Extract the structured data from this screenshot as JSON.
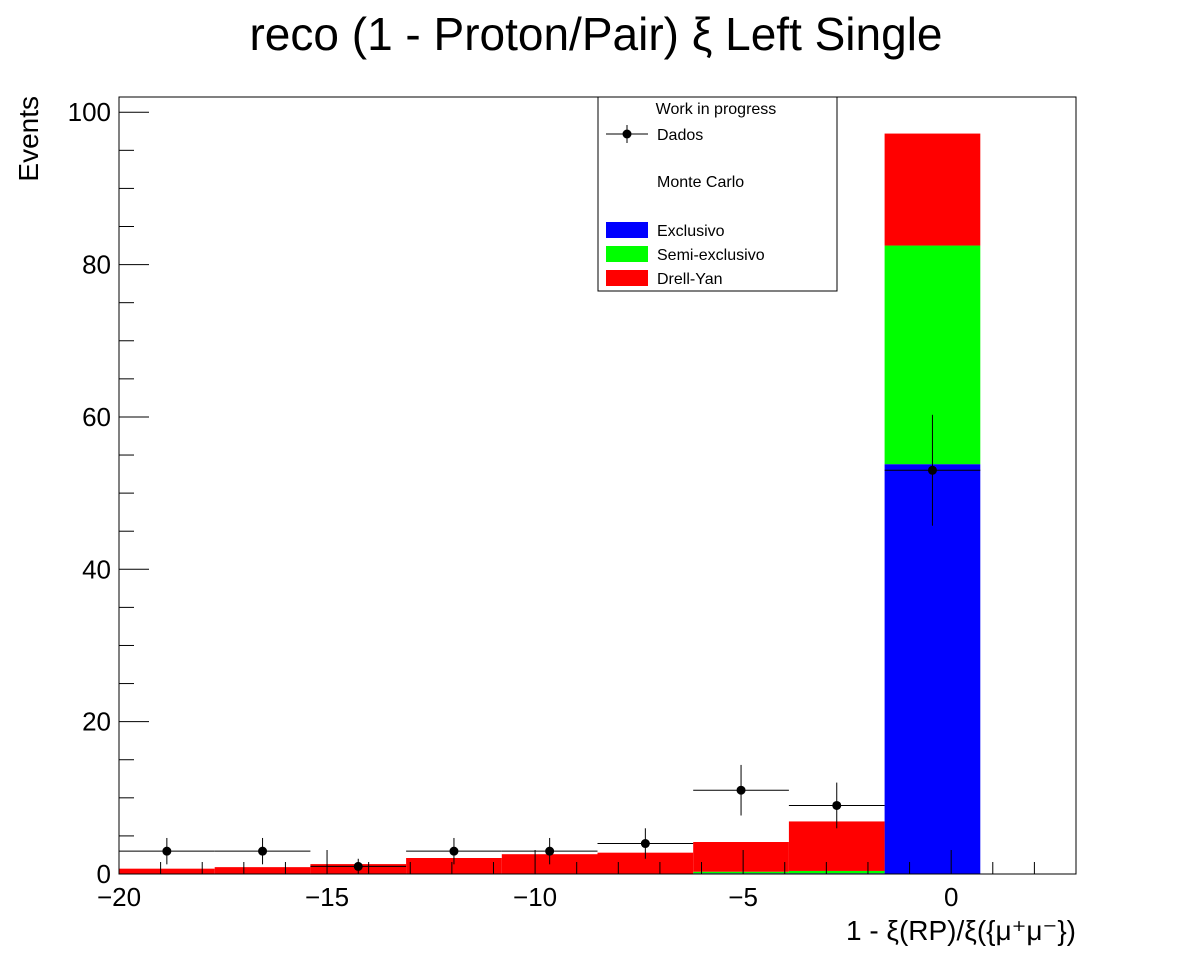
{
  "chart_data": {
    "type": "bar",
    "title": "reco (1 - Proton/Pair)  ξ Left Single",
    "xlabel": "1 - ξ(RP)/ξ({μ⁺μ⁻})",
    "ylabel": "Events",
    "xlim": [
      -20,
      3
    ],
    "ylim": [
      0,
      102
    ],
    "grid": false,
    "stacked": true,
    "legend_position": "top-center",
    "x_ticks": [
      -20,
      -15,
      -10,
      -5,
      0
    ],
    "x_tick_labels": [
      "−20",
      "−15",
      "−10",
      "−5",
      "0"
    ],
    "y_ticks": [
      0,
      20,
      40,
      60,
      80,
      100
    ],
    "bin_edges": [
      -20,
      -17.7,
      -15.4,
      -13.1,
      -10.8,
      -8.5,
      -6.2,
      -3.9,
      -1.6,
      0.7,
      3.0
    ],
    "series": [
      {
        "name": "Exclusivo",
        "color": "#0000ff",
        "values": [
          0,
          0,
          0,
          0,
          0,
          0,
          0.1,
          0.1,
          53.8,
          0
        ]
      },
      {
        "name": "Semi-exclusivo",
        "color": "#00ff00",
        "values": [
          0,
          0,
          0,
          0,
          0,
          0,
          0.2,
          0.3,
          28.7,
          0
        ]
      },
      {
        "name": "Drell-Yan",
        "color": "#ff0000",
        "values": [
          0.7,
          0.9,
          1.3,
          2.1,
          2.6,
          2.8,
          3.9,
          6.5,
          14.7,
          0
        ]
      }
    ],
    "data_points": {
      "name": "Dados",
      "color": "#000000",
      "x": [
        -18.85,
        -16.55,
        -14.25,
        -11.95,
        -9.65,
        -7.35,
        -5.05,
        -2.75,
        -0.45
      ],
      "y": [
        3,
        3,
        1,
        3,
        3,
        4,
        11,
        9,
        53
      ],
      "y_err": [
        1.73,
        1.73,
        1.0,
        1.73,
        1.73,
        2.0,
        3.32,
        3.0,
        7.28
      ]
    },
    "legend": {
      "header": "Work in progress",
      "data_label": "Dados",
      "mc_label": "Monte Carlo",
      "entries": [
        "Exclusivo",
        "Semi-exclusivo",
        "Drell-Yan"
      ]
    }
  }
}
